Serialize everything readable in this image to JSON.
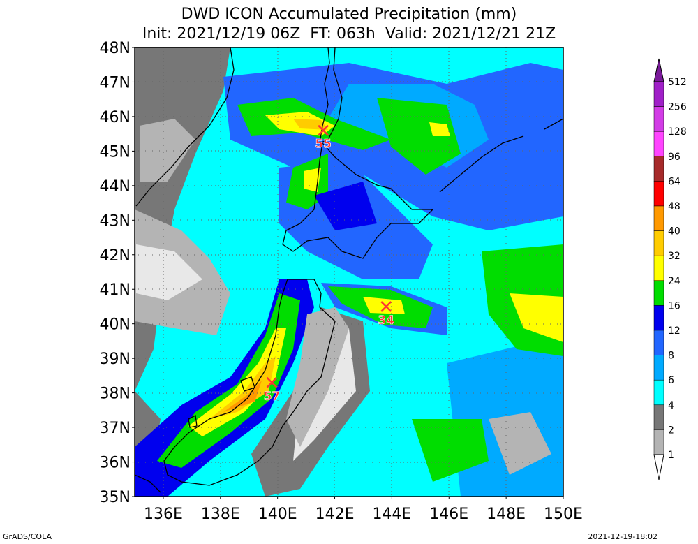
{
  "title_line1": "DWD ICON Accumulated Precipitation (mm)",
  "title_line2": "Init: 2021/12/19 06Z  FT: 063h  Valid: 2021/12/21 21Z",
  "lat_labels": [
    "48N",
    "47N",
    "46N",
    "45N",
    "44N",
    "43N",
    "42N",
    "41N",
    "40N",
    "39N",
    "38N",
    "37N",
    "36N",
    "35N"
  ],
  "lon_labels": [
    "136E",
    "138E",
    "140E",
    "142E",
    "144E",
    "146E",
    "148E",
    "150E"
  ],
  "legend": {
    "levels": [
      "512",
      "256",
      "128",
      "96",
      "64",
      "48",
      "40",
      "32",
      "24",
      "16",
      "12",
      "8",
      "6",
      "4",
      "2",
      "1"
    ],
    "colors": [
      "#7a1a9a",
      "#a020c8",
      "#d23ce6",
      "#ff44ff",
      "#a62a2a",
      "#ff0000",
      "#ff9900",
      "#ffcc00",
      "#ffff00",
      "#00dd00",
      "#0000ee",
      "#2266ff",
      "#00aaff",
      "#00ffff",
      "#777777",
      "#b4b4b4",
      "#ffffff"
    ]
  },
  "markers": [
    {
      "label": "55",
      "lon": 141.6,
      "lat": 45.6
    },
    {
      "label": "34",
      "lon": 143.8,
      "lat": 40.5
    },
    {
      "label": "57",
      "lon": 139.8,
      "lat": 38.3
    }
  ],
  "credit": "GrADS/COLA",
  "timestamp": "2021-12-19-18:02"
}
